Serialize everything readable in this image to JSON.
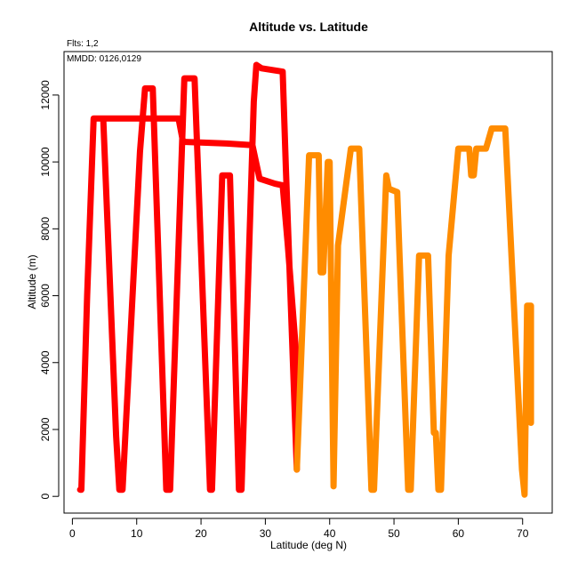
{
  "chart_data": {
    "type": "line",
    "title": "Altitude vs. Latitude",
    "xlabel": "Latitude (deg N)",
    "ylabel": "Altitude (m)",
    "annotations": [
      "Flts: 1,2",
      "MMDD: 0126,0129"
    ],
    "xlim": [
      -1.3,
      74.6
    ],
    "ylim": [
      -500,
      13300
    ],
    "xticks": [
      0,
      10,
      20,
      30,
      40,
      50,
      60,
      70
    ],
    "yticks": [
      0,
      2000,
      4000,
      6000,
      8000,
      10000,
      12000
    ],
    "grid": false,
    "series": [
      {
        "color": "#ff0000",
        "points": [
          [
            1.2,
            200
          ],
          [
            1.4,
            200
          ],
          [
            2.3,
            6000
          ],
          [
            3.3,
            11300
          ],
          [
            4.8,
            11300
          ],
          [
            6.8,
            1800
          ],
          [
            7.3,
            200
          ],
          [
            7.8,
            200
          ],
          [
            10.5,
            10300
          ],
          [
            11.3,
            12200
          ],
          [
            12.5,
            12200
          ],
          [
            14.6,
            200
          ],
          [
            15.2,
            200
          ],
          [
            17.4,
            12500
          ],
          [
            19.0,
            12500
          ],
          [
            21.4,
            200
          ],
          [
            21.7,
            200
          ],
          [
            23.3,
            9600
          ],
          [
            24.5,
            9600
          ],
          [
            25.9,
            200
          ],
          [
            26.3,
            200
          ],
          [
            28.2,
            11800
          ],
          [
            28.6,
            12900
          ],
          [
            29.4,
            12800
          ],
          [
            32.7,
            12700
          ],
          [
            33.2,
            9800
          ],
          [
            34.9,
            800
          ],
          [
            34.9,
            4000
          ],
          [
            33.5,
            7500
          ],
          [
            32.7,
            9300
          ],
          [
            31.5,
            9350
          ],
          [
            29.1,
            9500
          ],
          [
            28.0,
            10500
          ],
          [
            24.0,
            10550
          ],
          [
            17.2,
            10600
          ],
          [
            16.5,
            11300
          ],
          [
            5.5,
            11300
          ],
          [
            3.6,
            11300
          ]
        ]
      },
      {
        "color": "#ff8c00",
        "points": [
          [
            34.9,
            800
          ],
          [
            36.8,
            10200
          ],
          [
            38.3,
            10200
          ],
          [
            38.6,
            6700
          ],
          [
            39.0,
            6700
          ],
          [
            39.7,
            10000
          ],
          [
            40.0,
            10000
          ],
          [
            40.6,
            300
          ],
          [
            41.3,
            7500
          ],
          [
            43.3,
            10400
          ],
          [
            44.6,
            10400
          ],
          [
            46.5,
            200
          ],
          [
            46.9,
            200
          ],
          [
            48.8,
            9600
          ],
          [
            49.2,
            9200
          ],
          [
            50.5,
            9100
          ],
          [
            52.2,
            200
          ],
          [
            52.6,
            200
          ],
          [
            53.9,
            7200
          ],
          [
            55.3,
            7200
          ],
          [
            56.2,
            1900
          ],
          [
            56.5,
            1900
          ],
          [
            56.9,
            200
          ],
          [
            57.3,
            200
          ],
          [
            58.5,
            7200
          ],
          [
            60.0,
            10400
          ],
          [
            61.7,
            10400
          ],
          [
            62.0,
            9600
          ],
          [
            62.4,
            9600
          ],
          [
            62.8,
            10400
          ],
          [
            64.3,
            10400
          ],
          [
            65.2,
            11000
          ],
          [
            66.2,
            11000
          ],
          [
            67.3,
            11000
          ],
          [
            69.9,
            800
          ],
          [
            70.3,
            50
          ],
          [
            70.7,
            5700
          ],
          [
            71.3,
            5700
          ],
          [
            71.3,
            2200
          ]
        ]
      }
    ]
  }
}
